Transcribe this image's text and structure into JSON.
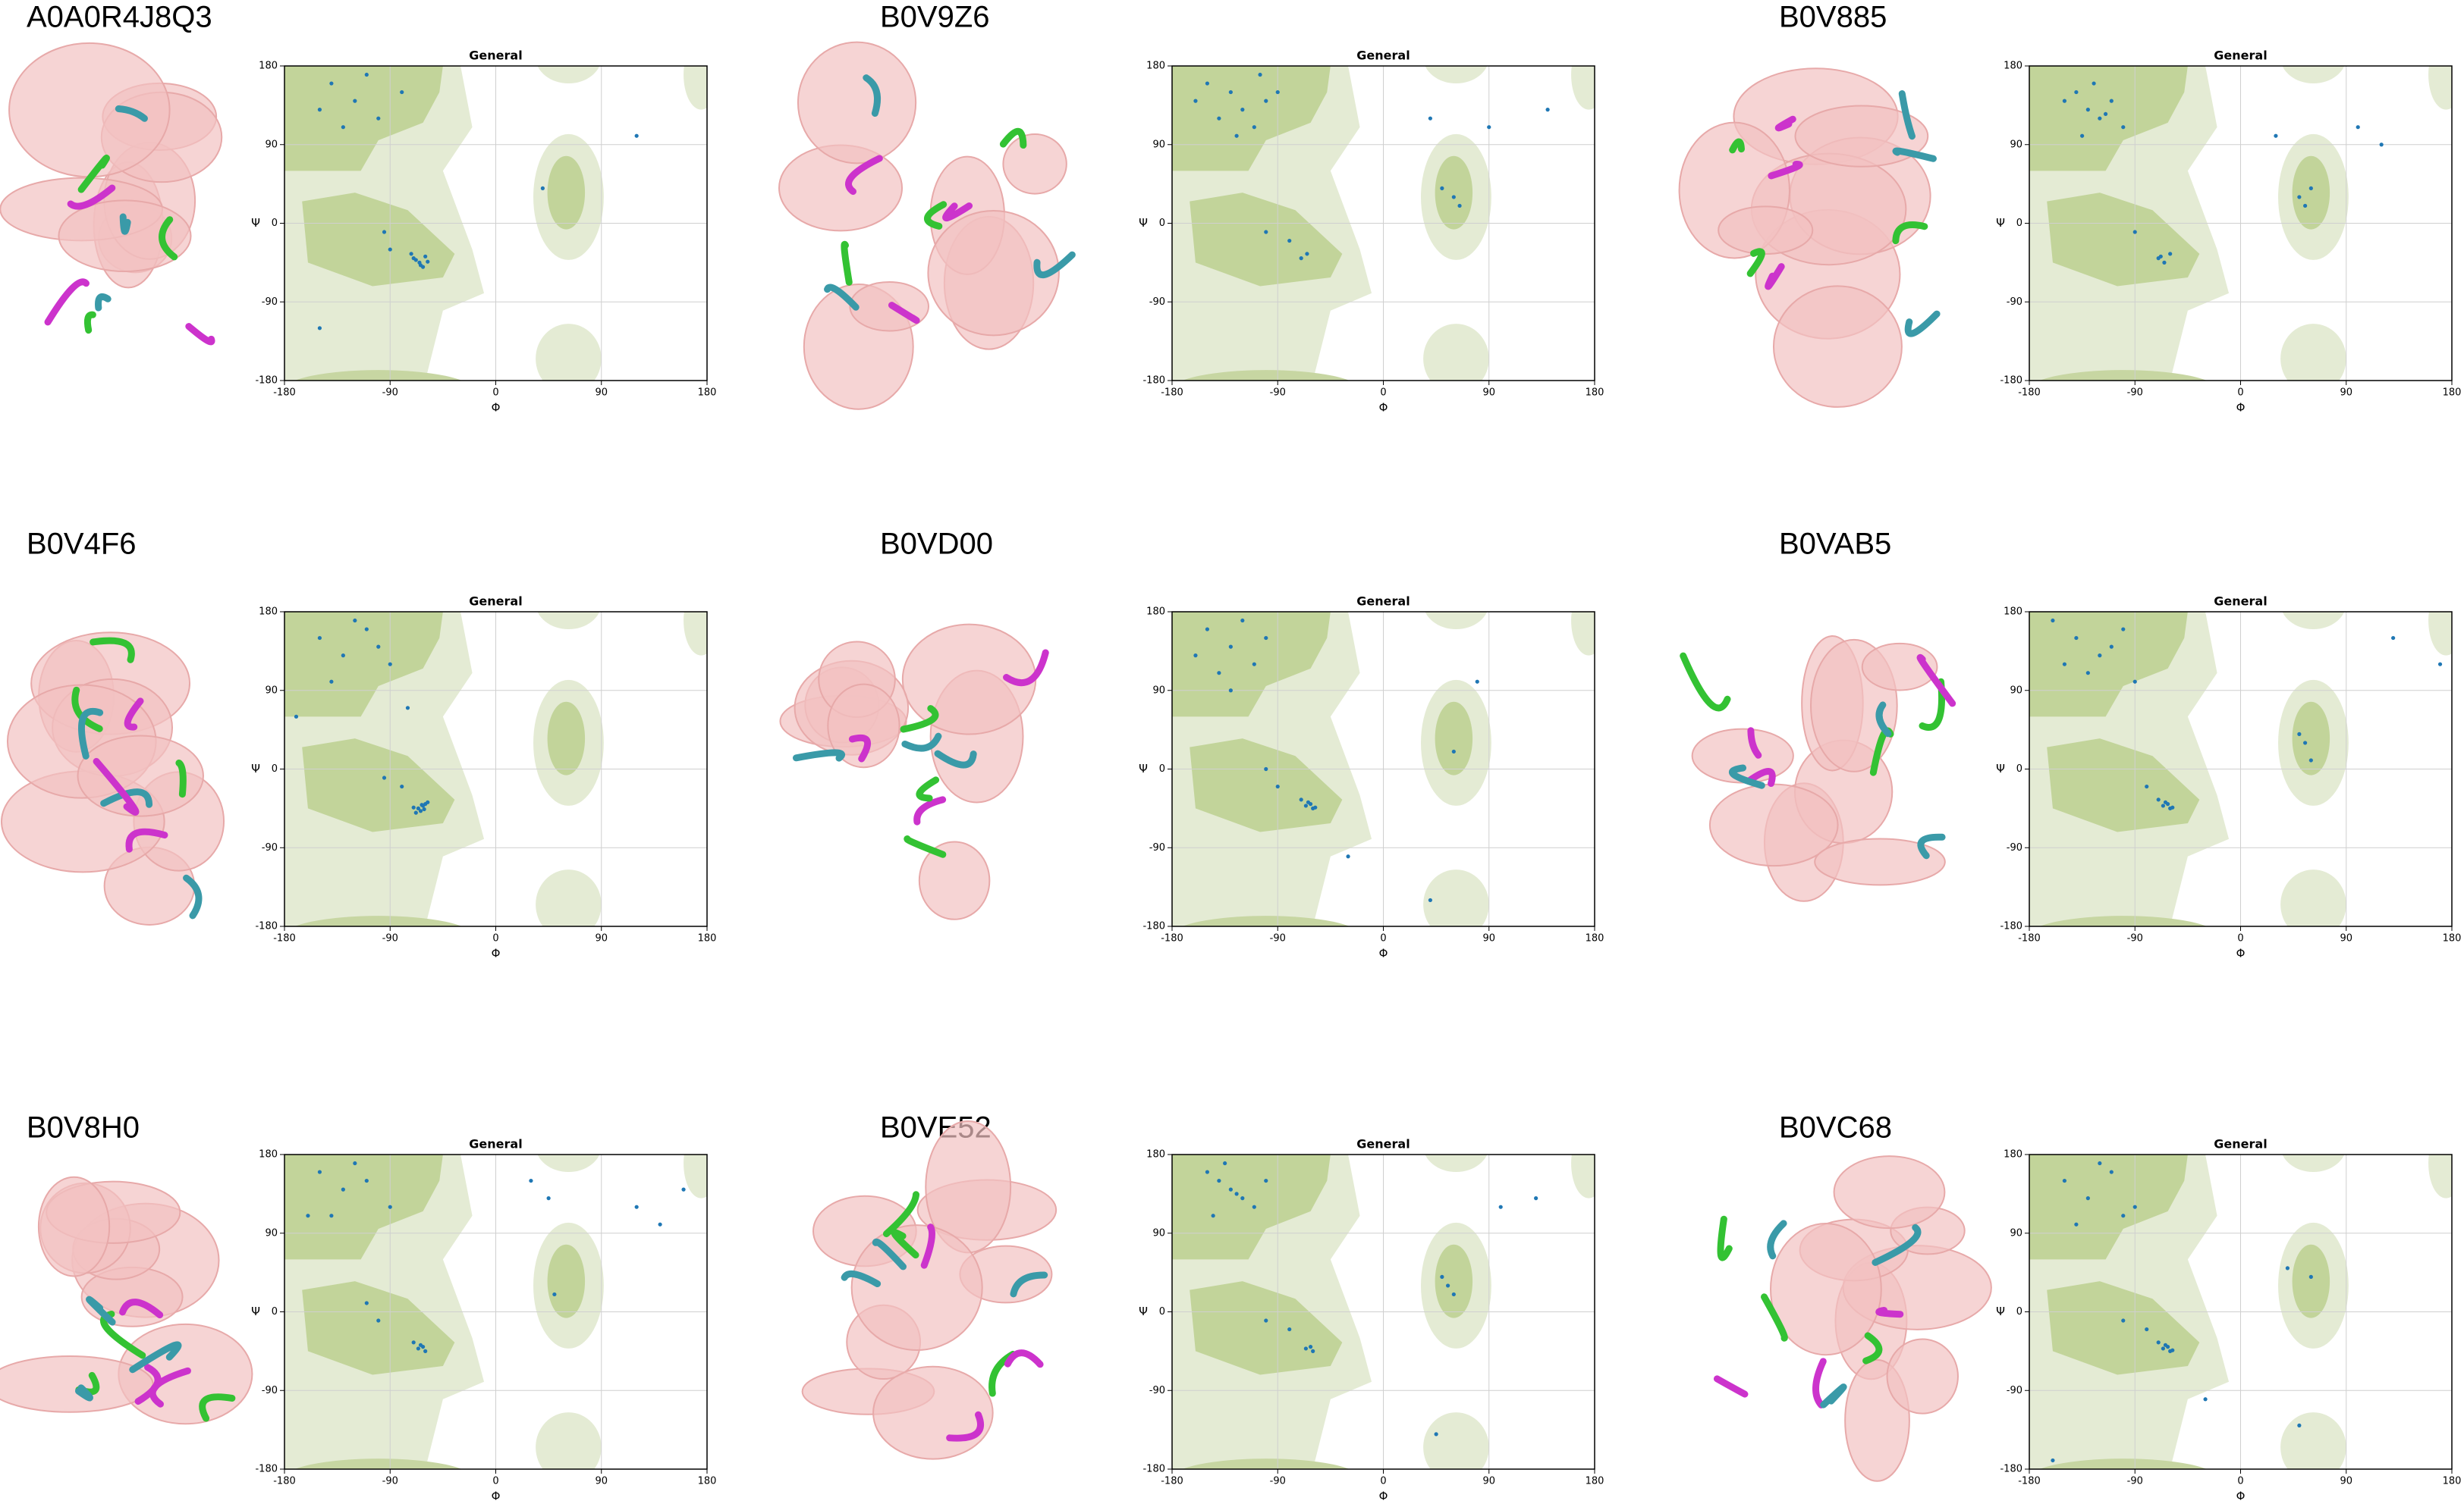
{
  "chart_data": [
    {
      "type": "scatter",
      "protein": "A0A0R4J8Q3",
      "title": "General",
      "x_label": "Φ",
      "y_label": "Ψ",
      "xlim": [
        -180,
        180
      ],
      "ylim": [
        -180,
        180
      ],
      "xticks": [
        -180,
        -90,
        0,
        90,
        180
      ],
      "yticks": [
        -180,
        -90,
        0,
        90,
        180
      ],
      "grid": true,
      "color": "#1f77b4",
      "x": [
        -140,
        -120,
        -100,
        -150,
        -80,
        -130,
        -110,
        -95,
        -70,
        -65,
        -60,
        -68,
        -62,
        -72,
        -58,
        -64,
        -90,
        40,
        120,
        -150
      ],
      "y": [
        160,
        140,
        120,
        130,
        150,
        110,
        170,
        -10,
        -40,
        -45,
        -38,
        -42,
        -50,
        -35,
        -44,
        -48,
        -30,
        40,
        100,
        -120
      ]
    },
    {
      "type": "scatter",
      "protein": "B0V9Z6",
      "title": "General",
      "x_label": "Φ",
      "y_label": "Ψ",
      "xlim": [
        -180,
        180
      ],
      "ylim": [
        -180,
        180
      ],
      "xticks": [
        -180,
        -90,
        0,
        90,
        180
      ],
      "yticks": [
        -180,
        -90,
        0,
        90,
        180
      ],
      "grid": true,
      "color": "#1f77b4",
      "x": [
        -150,
        -130,
        -120,
        -100,
        -140,
        -110,
        -90,
        -160,
        -125,
        -105,
        -80,
        -70,
        -65,
        -100,
        50,
        60,
        65,
        40,
        90,
        140
      ],
      "y": [
        160,
        150,
        130,
        140,
        120,
        110,
        150,
        140,
        100,
        170,
        -20,
        -40,
        -35,
        -10,
        40,
        30,
        20,
        120,
        110,
        130
      ]
    },
    {
      "type": "scatter",
      "protein": "B0V885",
      "title": "General",
      "x_label": "Φ",
      "y_label": "Ψ",
      "xlim": [
        -180,
        180
      ],
      "ylim": [
        -180,
        180
      ],
      "xticks": [
        -180,
        -90,
        0,
        90,
        180
      ],
      "yticks": [
        -180,
        -90,
        0,
        90,
        180
      ],
      "grid": true,
      "color": "#1f77b4",
      "x": [
        -150,
        -140,
        -130,
        -120,
        -110,
        -100,
        -135,
        -125,
        -115,
        -70,
        -65,
        -60,
        -68,
        -90,
        50,
        55,
        60,
        30,
        100,
        120
      ],
      "y": [
        140,
        150,
        130,
        120,
        140,
        110,
        100,
        160,
        125,
        -40,
        -45,
        -35,
        -38,
        -10,
        30,
        20,
        40,
        100,
        110,
        90
      ]
    },
    {
      "type": "scatter",
      "protein": "B0V4F6",
      "title": "General",
      "x_label": "Φ",
      "y_label": "Ψ",
      "xlim": [
        -180,
        180
      ],
      "ylim": [
        -180,
        180
      ],
      "xticks": [
        -180,
        -90,
        0,
        90,
        180
      ],
      "yticks": [
        -180,
        -90,
        0,
        90,
        180
      ],
      "grid": true,
      "color": "#1f77b4",
      "x": [
        -150,
        -130,
        -110,
        -90,
        -140,
        -120,
        -100,
        -66,
        -62,
        -60,
        -64,
        -58,
        -70,
        -68,
        -63,
        -61,
        -80,
        -95,
        -170,
        -75
      ],
      "y": [
        150,
        130,
        160,
        120,
        100,
        170,
        140,
        -45,
        -42,
        -40,
        -48,
        -38,
        -44,
        -50,
        -41,
        -46,
        -20,
        -10,
        60,
        70
      ]
    },
    {
      "type": "scatter",
      "protein": "B0VD00",
      "title": "General",
      "x_label": "Φ",
      "y_label": "Ψ",
      "xlim": [
        -180,
        180
      ],
      "ylim": [
        -180,
        180
      ],
      "xticks": [
        -180,
        -90,
        0,
        90,
        180
      ],
      "yticks": [
        -180,
        -90,
        0,
        90,
        180
      ],
      "grid": true,
      "color": "#1f77b4",
      "x": [
        -150,
        -130,
        -110,
        -100,
        -140,
        -120,
        -160,
        -66,
        -62,
        -60,
        -64,
        -58,
        -70,
        -90,
        -100,
        40,
        60,
        80,
        -30,
        -130
      ],
      "y": [
        160,
        140,
        120,
        150,
        110,
        170,
        130,
        -42,
        -40,
        -45,
        -38,
        -44,
        -35,
        -20,
        0,
        -150,
        20,
        100,
        -100,
        90
      ]
    },
    {
      "type": "scatter",
      "protein": "B0VAB5",
      "title": "General",
      "x_label": "Φ",
      "y_label": "Ψ",
      "xlim": [
        -180,
        180
      ],
      "ylim": [
        -180,
        180
      ],
      "xticks": [
        -180,
        -90,
        0,
        90,
        180
      ],
      "yticks": [
        -180,
        -90,
        0,
        90,
        180
      ],
      "grid": true,
      "color": "#1f77b4",
      "x": [
        -160,
        -140,
        -120,
        -100,
        -150,
        -130,
        -110,
        -90,
        -66,
        -62,
        -60,
        -64,
        -58,
        -70,
        -80,
        50,
        55,
        60,
        130,
        170
      ],
      "y": [
        170,
        150,
        130,
        160,
        120,
        110,
        140,
        100,
        -42,
        -40,
        -45,
        -38,
        -44,
        -35,
        -20,
        40,
        30,
        10,
        150,
        120
      ]
    },
    {
      "type": "scatter",
      "protein": "B0V8H0",
      "title": "General",
      "x_label": "Φ",
      "y_label": "Ψ",
      "xlim": [
        -180,
        180
      ],
      "ylim": [
        -180,
        180
      ],
      "xticks": [
        -180,
        -90,
        0,
        90,
        180
      ],
      "yticks": [
        -180,
        -90,
        0,
        90,
        180
      ],
      "grid": true,
      "color": "#1f77b4",
      "x": [
        -150,
        -130,
        -110,
        -90,
        -140,
        -120,
        -66,
        -62,
        -60,
        -64,
        -70,
        -100,
        -110,
        30,
        45,
        50,
        120,
        160,
        140,
        -160
      ],
      "y": [
        160,
        140,
        150,
        120,
        110,
        170,
        -42,
        -40,
        -45,
        -38,
        -35,
        -10,
        10,
        150,
        130,
        20,
        120,
        140,
        100,
        110
      ]
    },
    {
      "type": "scatter",
      "protein": "B0VE52",
      "title": "General",
      "x_label": "Φ",
      "y_label": "Ψ",
      "xlim": [
        -180,
        180
      ],
      "ylim": [
        -180,
        180
      ],
      "xticks": [
        -180,
        -90,
        0,
        90,
        180
      ],
      "yticks": [
        -180,
        -90,
        0,
        90,
        180
      ],
      "grid": true,
      "color": "#1f77b4",
      "x": [
        -150,
        -140,
        -130,
        -120,
        -110,
        -100,
        -145,
        -135,
        -125,
        -66,
        -62,
        -60,
        -80,
        -100,
        50,
        55,
        60,
        45,
        100,
        130
      ],
      "y": [
        160,
        150,
        140,
        130,
        120,
        150,
        110,
        170,
        135,
        -42,
        -40,
        -45,
        -20,
        -10,
        40,
        30,
        20,
        -140,
        120,
        130
      ]
    },
    {
      "type": "scatter",
      "protein": "B0VC68",
      "title": "General",
      "x_label": "Φ",
      "y_label": "Ψ",
      "xlim": [
        -180,
        180
      ],
      "ylim": [
        -180,
        180
      ],
      "xticks": [
        -180,
        -90,
        0,
        90,
        180
      ],
      "yticks": [
        -180,
        -90,
        0,
        90,
        180
      ],
      "grid": true,
      "color": "#1f77b4",
      "x": [
        -150,
        -130,
        -110,
        -90,
        -140,
        -120,
        -100,
        -66,
        -62,
        -60,
        -64,
        -58,
        -70,
        -80,
        -100,
        40,
        60,
        -160,
        -30,
        50
      ],
      "y": [
        150,
        130,
        160,
        120,
        100,
        170,
        110,
        -42,
        -40,
        -45,
        -38,
        -44,
        -35,
        -20,
        -10,
        50,
        40,
        -170,
        -100,
        -130
      ]
    }
  ]
}
